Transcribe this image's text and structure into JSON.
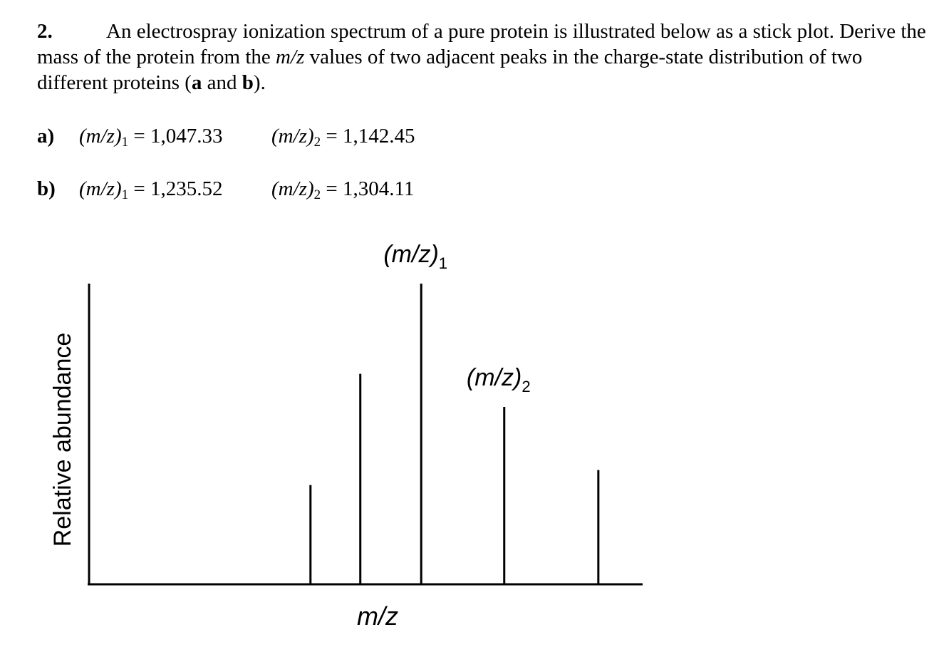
{
  "question": {
    "number": "2.",
    "text_1": "An electrospray ionization spectrum of a pure protein is illustrated below as a stick plot. Derive the mass of the protein from the ",
    "mz_word": "m/z",
    "text_2": " values of two adjacent peaks in the charge-state distribution of two different proteins (",
    "a": "a",
    "and": " and ",
    "b": "b",
    "end": ")."
  },
  "values": [
    {
      "label": "a)",
      "mz1_name": "(m/z)",
      "mz1_sub": "1",
      "mz1_value": " = 1,047.33",
      "mz2_name": "(m/z)",
      "mz2_sub": "2",
      "mz2_value": " = 1,142.45"
    },
    {
      "label": "b)",
      "mz1_name": "(m/z)",
      "mz1_sub": "1",
      "mz1_value": " = 1,235.52",
      "mz2_name": "(m/z)",
      "mz2_sub": "2",
      "mz2_value": " = 1,304.11"
    }
  ],
  "chart_data": {
    "type": "bar",
    "xlabel": "m/z",
    "ylabel": "Relative abundance",
    "ylim": [
      0,
      100
    ],
    "peaks": [
      {
        "x": 0.4,
        "y": 33
      },
      {
        "x": 0.49,
        "y": 70
      },
      {
        "x": 0.6,
        "y": 100,
        "label": "(m/z)",
        "sub": "1"
      },
      {
        "x": 0.75,
        "y": 59,
        "label": "(m/z)",
        "sub": "2"
      },
      {
        "x": 0.92,
        "y": 38
      }
    ]
  }
}
